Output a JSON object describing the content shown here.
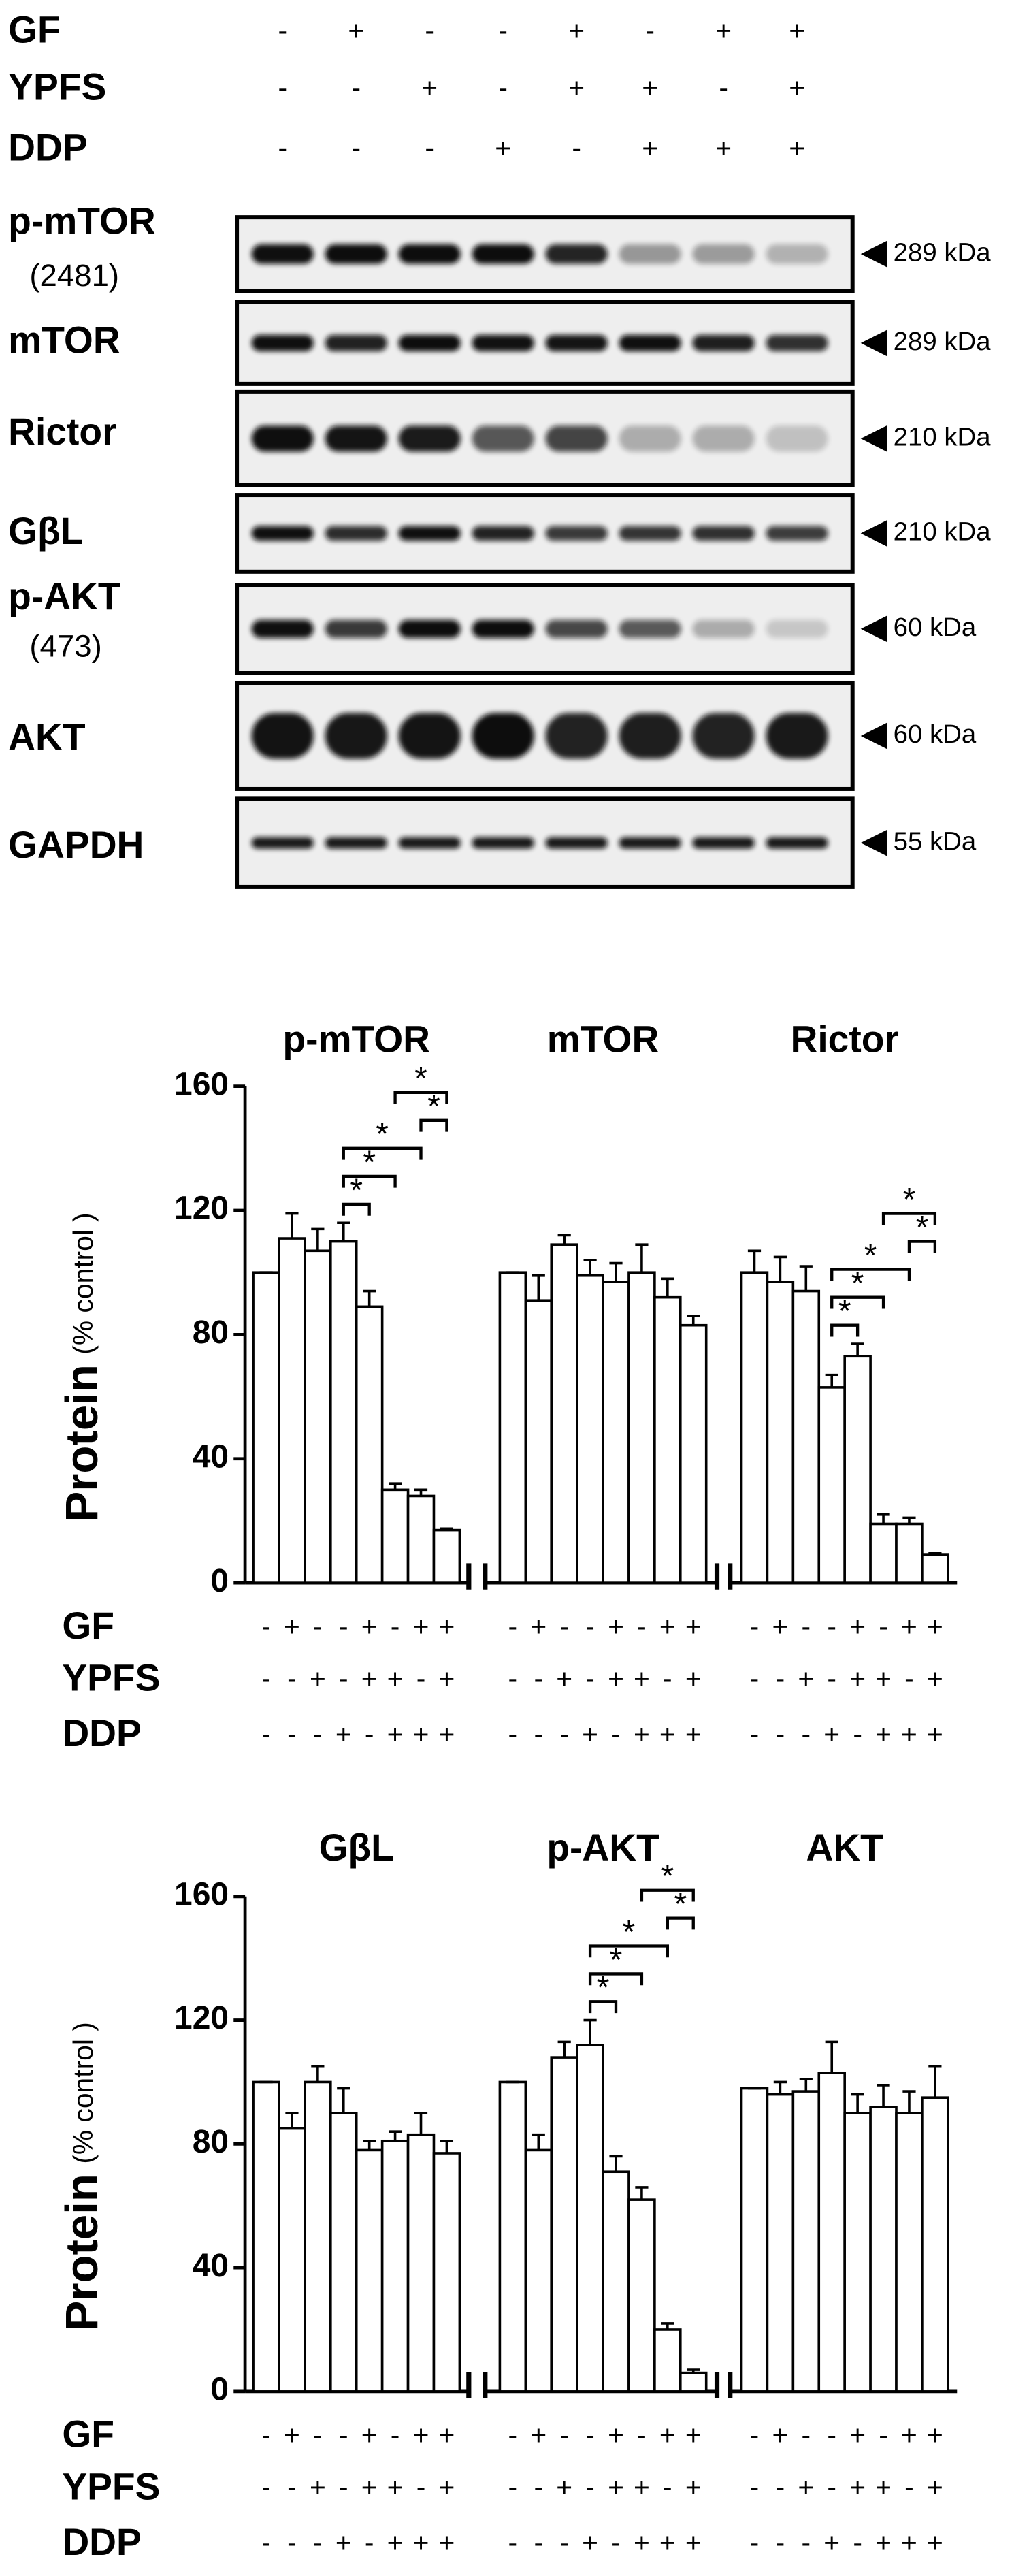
{
  "treatments": [
    {
      "label": "GF",
      "signs": [
        "-",
        "+",
        "-",
        "-",
        "+",
        "-",
        "+",
        "+"
      ]
    },
    {
      "label": "YPFS",
      "signs": [
        "-",
        "-",
        "+",
        "-",
        "+",
        "+",
        "-",
        "+"
      ]
    },
    {
      "label": "DDP",
      "signs": [
        "-",
        "-",
        "-",
        "+",
        "-",
        "+",
        "+",
        "+"
      ]
    }
  ],
  "blot": {
    "rows": [
      {
        "label": "p-mTOR",
        "sublabel": "(2481)",
        "kda": "289 kDa"
      },
      {
        "label": "mTOR",
        "kda": "289 kDa"
      },
      {
        "label": "Rictor",
        "kda": "210 kDa"
      },
      {
        "label": "GβL",
        "kda": "210 kDa"
      },
      {
        "label": "p-AKT",
        "sublabel": "(473)",
        "kda": "60 kDa"
      },
      {
        "label": "AKT",
        "kda": "60 kDa"
      },
      {
        "label": "GAPDH",
        "kda": "55 kDa"
      }
    ]
  },
  "chart_data": [
    {
      "type": "bar",
      "title": "p-mTOR",
      "ylabel": "Protein",
      "ylabel_sub": "(% control )",
      "color": "#ffffff",
      "values": [
        100,
        111,
        107,
        110,
        89,
        30,
        28,
        17
      ],
      "errors": [
        0,
        8,
        7,
        6,
        5,
        2,
        2,
        0.5
      ],
      "ylim": [
        0,
        160
      ],
      "yticks": [
        0,
        40,
        80,
        120,
        160
      ],
      "brackets": [
        {
          "from": 3,
          "to": 4,
          "label": "*"
        },
        {
          "from": 3,
          "to": 5,
          "label": "*"
        },
        {
          "from": 3,
          "to": 6,
          "label": "*"
        },
        {
          "from": 6,
          "to": 7,
          "label": "*"
        },
        {
          "from": 5,
          "to": 7,
          "label": "*"
        }
      ]
    },
    {
      "type": "bar",
      "title": "mTOR",
      "color": "#ffffff",
      "values": [
        100,
        91,
        109,
        99,
        97,
        100,
        92,
        83
      ],
      "errors": [
        0,
        8,
        3,
        5,
        6,
        9,
        6,
        3
      ],
      "ylim": [
        0,
        160
      ],
      "brackets": []
    },
    {
      "type": "bar",
      "title": "Rictor",
      "color": "#ffffff",
      "values": [
        100,
        97,
        94,
        63,
        73,
        19,
        19,
        9
      ],
      "errors": [
        7,
        8,
        8,
        4,
        4,
        3,
        2,
        0.5
      ],
      "ylim": [
        0,
        160
      ],
      "brackets": [
        {
          "from": 3,
          "to": 4,
          "label": "*"
        },
        {
          "from": 3,
          "to": 5,
          "label": "*"
        },
        {
          "from": 3,
          "to": 6,
          "label": "*"
        },
        {
          "from": 6,
          "to": 7,
          "label": "*"
        },
        {
          "from": 5,
          "to": 7,
          "label": "*"
        }
      ]
    },
    {
      "type": "bar",
      "title": "GβL",
      "ylabel": "Protein",
      "ylabel_sub": "(% control )",
      "color": "#ffffff",
      "values": [
        100,
        85,
        100,
        90,
        78,
        81,
        83,
        77
      ],
      "errors": [
        0,
        5,
        5,
        8,
        3,
        3,
        7,
        4
      ],
      "ylim": [
        0,
        160
      ],
      "yticks": [
        0,
        40,
        80,
        120,
        160
      ],
      "brackets": []
    },
    {
      "type": "bar",
      "title": "p-AKT",
      "color": "#ffffff",
      "values": [
        100,
        78,
        108,
        112,
        71,
        62,
        20,
        6
      ],
      "errors": [
        0,
        5,
        5,
        8,
        5,
        4,
        2,
        1
      ],
      "ylim": [
        0,
        160
      ],
      "brackets": [
        {
          "from": 3,
          "to": 4,
          "label": "*"
        },
        {
          "from": 3,
          "to": 5,
          "label": "*"
        },
        {
          "from": 3,
          "to": 6,
          "label": "*"
        },
        {
          "from": 6,
          "to": 7,
          "label": "*"
        },
        {
          "from": 5,
          "to": 7,
          "label": "*"
        }
      ]
    },
    {
      "type": "bar",
      "title": "AKT",
      "color": "#ffffff",
      "values": [
        98,
        96,
        97,
        103,
        90,
        92,
        90,
        95
      ],
      "errors": [
        0,
        4,
        4,
        10,
        6,
        7,
        7,
        10
      ],
      "ylim": [
        0,
        160
      ],
      "brackets": []
    }
  ]
}
